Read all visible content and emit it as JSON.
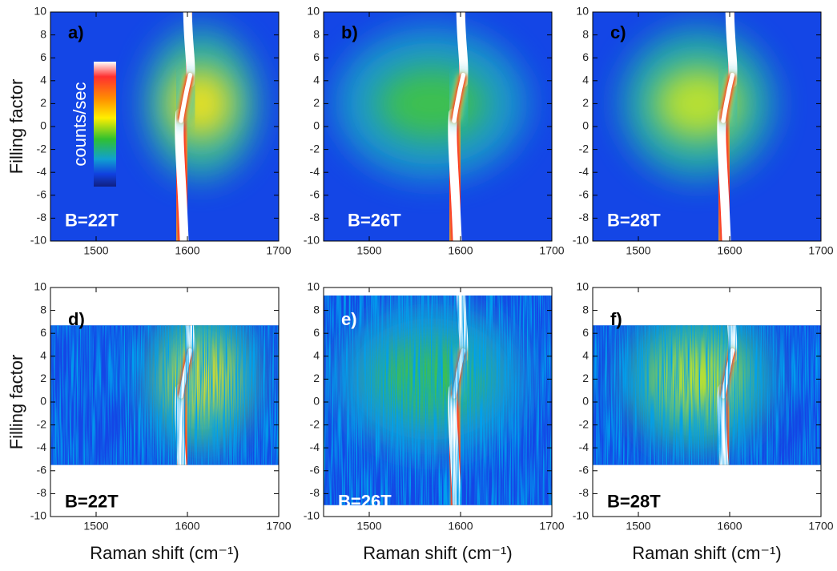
{
  "chart_data": [
    {
      "type": "heatmap",
      "panel_label": "a)",
      "field_label": "B=22T",
      "text_color": "#ffffff",
      "ylabel": "Filling factor",
      "colorbar_label": "counts/sec",
      "xlim": [
        1450,
        1700
      ],
      "xticks": [
        1500,
        1600,
        1700
      ],
      "ylim": [
        -10,
        10
      ],
      "yticks": [
        -10,
        -8,
        -6,
        -4,
        -2,
        0,
        2,
        4,
        6,
        8,
        10
      ]
    },
    {
      "type": "heatmap",
      "panel_label": "b)",
      "field_label": "B=26T",
      "text_color": "#ffffff",
      "xlim": [
        1450,
        1700
      ],
      "xticks": [
        1500,
        1600,
        1700
      ],
      "ylim": [
        -10,
        10
      ],
      "yticks": [
        -10,
        -8,
        -6,
        -4,
        -2,
        0,
        2,
        4,
        6,
        8,
        10
      ]
    },
    {
      "type": "heatmap",
      "panel_label": "c)",
      "field_label": "B=28T",
      "text_color": "#ffffff",
      "xlim": [
        1450,
        1700
      ],
      "xticks": [
        1500,
        1600,
        1700
      ],
      "ylim": [
        -10,
        10
      ],
      "yticks": [
        -10,
        -8,
        -6,
        -4,
        -2,
        0,
        2,
        4,
        6,
        8,
        10
      ]
    },
    {
      "type": "heatmap",
      "panel_label": "d)",
      "field_label": "B=22T",
      "text_color": "#000000",
      "ylabel": "Filling factor",
      "xlabel": "Raman shift (cm⁻¹)",
      "xlim": [
        1450,
        1700
      ],
      "xticks": [
        1500,
        1600,
        1700
      ],
      "ylim": [
        -10,
        10
      ],
      "yticks": [
        -10,
        -8,
        -6,
        -4,
        -2,
        0,
        2,
        4,
        6,
        8,
        10
      ]
    },
    {
      "type": "heatmap",
      "panel_label": "e)",
      "field_label": "B=26T",
      "text_color": "#ffffff",
      "xlabel": "Raman shift (cm⁻¹)",
      "xlim": [
        1450,
        1700
      ],
      "xticks": [
        1500,
        1600,
        1700
      ],
      "ylim": [
        -10,
        10
      ],
      "yticks": [
        -10,
        -8,
        -6,
        -4,
        -2,
        0,
        2,
        4,
        6,
        8,
        10
      ]
    },
    {
      "type": "heatmap",
      "panel_label": "f)",
      "field_label": "B=28T",
      "text_color": "#000000",
      "xlabel": "Raman shift (cm⁻¹)",
      "xlim": [
        1450,
        1700
      ],
      "xticks": [
        1500,
        1600,
        1700
      ],
      "ylim": [
        -10,
        10
      ],
      "yticks": [
        -10,
        -8,
        -6,
        -4,
        -2,
        0,
        2,
        4,
        6,
        8,
        10
      ]
    }
  ]
}
